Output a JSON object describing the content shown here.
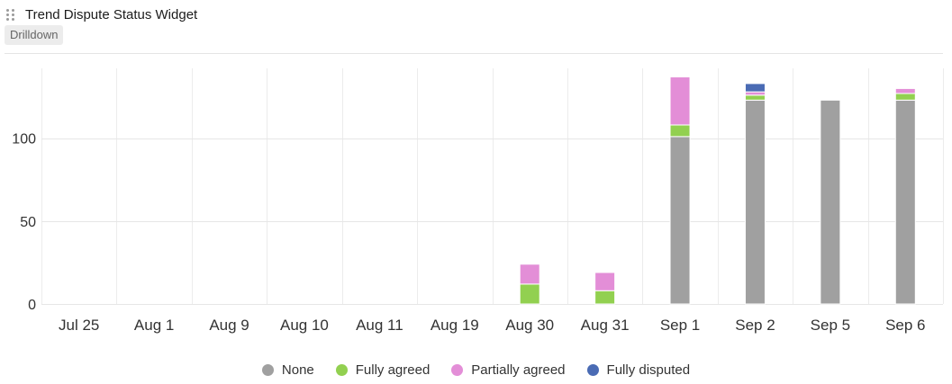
{
  "widget": {
    "title": "Trend Dispute Status Widget",
    "drilldown_label": "Drilldown"
  },
  "legend": [
    {
      "name": "None",
      "color": "#a0a0a0"
    },
    {
      "name": "Fully agreed",
      "color": "#92d050"
    },
    {
      "name": "Partially agreed",
      "color": "#e38ed7"
    },
    {
      "name": "Fully disputed",
      "color": "#4a6bb4"
    }
  ],
  "chart_data": {
    "type": "bar",
    "stacked": true,
    "categories": [
      "Jul 25",
      "Aug 1",
      "Aug 9",
      "Aug 10",
      "Aug 11",
      "Aug 19",
      "Aug 30",
      "Aug 31",
      "Sep 1",
      "Sep 2",
      "Sep 5",
      "Sep 6"
    ],
    "series": [
      {
        "name": "None",
        "color": "#a0a0a0",
        "values": [
          0,
          0,
          0,
          0,
          0,
          0,
          0,
          0,
          101,
          123,
          123,
          123
        ]
      },
      {
        "name": "Fully agreed",
        "color": "#92d050",
        "values": [
          0,
          0,
          0,
          0,
          0,
          0,
          12,
          8,
          7,
          3,
          0,
          4
        ]
      },
      {
        "name": "Partially agreed",
        "color": "#e38ed7",
        "values": [
          0,
          0,
          0,
          0,
          0,
          0,
          12,
          11,
          29,
          2,
          0,
          3
        ]
      },
      {
        "name": "Fully disputed",
        "color": "#4a6bb4",
        "values": [
          0,
          0,
          0,
          0,
          0,
          0,
          0,
          0,
          0,
          5,
          0,
          0
        ]
      }
    ],
    "y_ticks": [
      0,
      50,
      100
    ],
    "ylim": [
      0,
      140
    ],
    "grid": true,
    "legend_position": "bottom",
    "title": "",
    "xlabel": "",
    "ylabel": ""
  }
}
